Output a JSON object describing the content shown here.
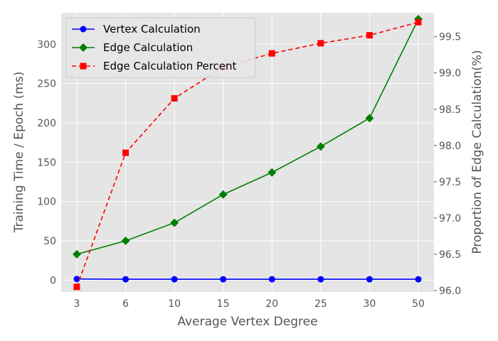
{
  "chart_data": {
    "type": "line",
    "categories": [
      "3",
      "6",
      "10",
      "15",
      "20",
      "25",
      "30",
      "50"
    ],
    "xlabel": "Average Vertex Degree",
    "ylabel": "Training Time / Epoch (ms)",
    "y2label": "Proportion of Edge Calculation(%)",
    "ylim": [
      -15,
      340
    ],
    "y2lim": [
      95.98,
      99.83
    ],
    "yticks": [
      0,
      50,
      100,
      150,
      200,
      250,
      300
    ],
    "y2ticks": [
      "96.0",
      "96.5",
      "97.0",
      "97.5",
      "98.0",
      "98.5",
      "99.0",
      "99.5"
    ],
    "grid": true,
    "legend_position": "top-left",
    "series": [
      {
        "name": "Vertex Calculation",
        "axis": "left",
        "color": "#0000ff",
        "marker": "circle",
        "linestyle": "solid",
        "values": [
          1.5,
          1.2,
          1.2,
          1.2,
          1.2,
          1.2,
          1.2,
          1.2
        ]
      },
      {
        "name": "Edge Calculation",
        "axis": "left",
        "color": "#008000",
        "marker": "diamond",
        "linestyle": "solid",
        "values": [
          33,
          50,
          73,
          109,
          137,
          170,
          206,
          332
        ]
      },
      {
        "name": "Edge Calculation Percent",
        "axis": "right",
        "color": "#ff0000",
        "marker": "square",
        "linestyle": "dashed",
        "values": [
          96.05,
          97.9,
          98.65,
          99.08,
          99.27,
          99.41,
          99.52,
          99.7
        ]
      }
    ]
  }
}
